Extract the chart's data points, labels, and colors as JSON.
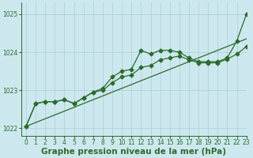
{
  "title": "Graphe pression niveau de la mer (hPa)",
  "bg_color": "#cce8ee",
  "grid_color": "#aacdd6",
  "line_color": "#2d6a2d",
  "xlim": [
    -0.5,
    23
  ],
  "ylim": [
    1021.8,
    1025.3
  ],
  "yticks": [
    1022,
    1023,
    1024,
    1025
  ],
  "xticks": [
    0,
    1,
    2,
    3,
    4,
    5,
    6,
    7,
    8,
    9,
    10,
    11,
    12,
    13,
    14,
    15,
    16,
    17,
    18,
    19,
    20,
    21,
    22,
    23
  ],
  "series1": [
    1022.05,
    1022.65,
    1022.7,
    1022.7,
    1022.75,
    1022.65,
    1022.8,
    1022.95,
    1023.05,
    1023.35,
    1023.5,
    1023.55,
    1024.05,
    1023.95,
    1024.05,
    1024.05,
    1024.0,
    1023.85,
    1023.75,
    1023.75,
    1023.75,
    1023.85,
    1024.3,
    1025.0
  ],
  "series2": [
    1022.05,
    1022.65,
    1022.7,
    1022.7,
    1022.75,
    1022.65,
    1022.8,
    1022.95,
    1023.0,
    1023.2,
    1023.35,
    1023.4,
    1023.6,
    1023.65,
    1023.8,
    1023.85,
    1023.9,
    1023.8,
    1023.72,
    1023.72,
    1023.72,
    1023.82,
    1023.95,
    1024.15
  ],
  "straight_line": [
    [
      0,
      1022.05
    ],
    [
      23,
      1024.35
    ]
  ],
  "marker": "D",
  "marker_size": 2.5,
  "linewidth": 0.9,
  "title_fontsize": 7.5,
  "tick_fontsize": 5.5
}
